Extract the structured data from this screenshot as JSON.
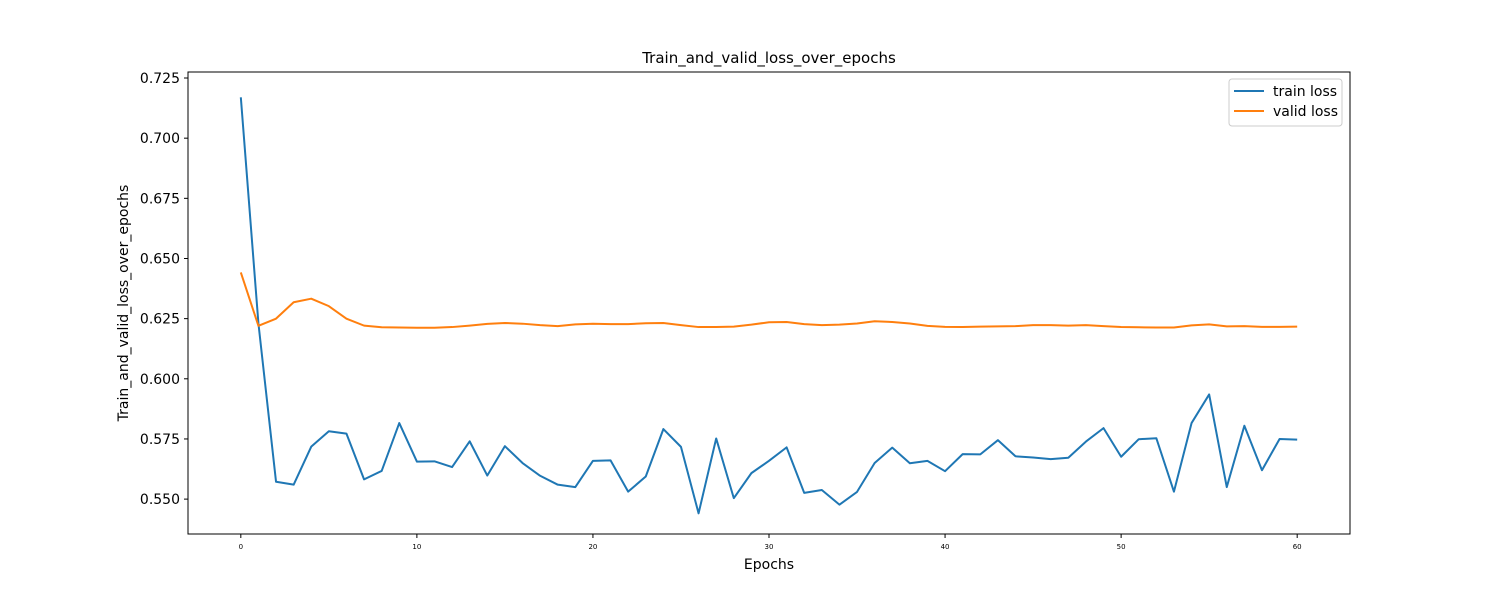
{
  "chart_data": {
    "type": "line",
    "title": "Train_and_valid_loss_over_epochs",
    "xlabel": "Epochs",
    "ylabel": "Train_and_valid_loss_over_epochs",
    "xlim": [
      -3,
      63
    ],
    "ylim": [
      0.5355,
      0.7275
    ],
    "x_ticks": [
      0,
      10,
      20,
      30,
      40,
      50,
      60
    ],
    "y_ticks": [
      0.55,
      0.575,
      0.6,
      0.625,
      0.65,
      0.675,
      0.7,
      0.725
    ],
    "y_tick_labels": [
      "0.550",
      "0.575",
      "0.600",
      "0.625",
      "0.650",
      "0.675",
      "0.700",
      "0.725"
    ],
    "grid": false,
    "legend_position": "top-right",
    "x": [
      0,
      1,
      2,
      3,
      4,
      5,
      6,
      7,
      8,
      9,
      10,
      11,
      12,
      13,
      14,
      15,
      16,
      17,
      18,
      19,
      20,
      21,
      22,
      23,
      24,
      25,
      26,
      27,
      28,
      29,
      30,
      31,
      32,
      33,
      34,
      35,
      36,
      37,
      38,
      39,
      40,
      41,
      42,
      43,
      44,
      45,
      46,
      47,
      48,
      49,
      50,
      51,
      52,
      53,
      54,
      55,
      56,
      57,
      58,
      59,
      60
    ],
    "series": [
      {
        "name": "train loss",
        "color": "#1f77b4",
        "values": [
          0.717,
          0.623,
          0.5572,
          0.556,
          0.5718,
          0.5782,
          0.5772,
          0.5582,
          0.5617,
          0.5816,
          0.5656,
          0.5657,
          0.5633,
          0.574,
          0.5598,
          0.572,
          0.565,
          0.5597,
          0.556,
          0.555,
          0.5659,
          0.5661,
          0.5531,
          0.5594,
          0.5791,
          0.5717,
          0.5441,
          0.5752,
          0.5504,
          0.5608,
          0.5659,
          0.5715,
          0.5526,
          0.5538,
          0.5477,
          0.553,
          0.565,
          0.5714,
          0.5649,
          0.5659,
          0.5616,
          0.5687,
          0.5686,
          0.5745,
          0.5678,
          0.5673,
          0.5666,
          0.5672,
          0.5739,
          0.5795,
          0.5676,
          0.5749,
          0.5753,
          0.5531,
          0.5816,
          0.5935,
          0.555,
          0.5805,
          0.562,
          0.575,
          0.5747
        ]
      },
      {
        "name": "valid loss",
        "color": "#ff7f0e",
        "values": [
          0.6442,
          0.622,
          0.625,
          0.6318,
          0.6333,
          0.6302,
          0.625,
          0.6221,
          0.6214,
          0.6213,
          0.6212,
          0.6212,
          0.6215,
          0.6221,
          0.6228,
          0.6232,
          0.6229,
          0.6223,
          0.6219,
          0.6226,
          0.6229,
          0.6227,
          0.6227,
          0.6231,
          0.6232,
          0.6223,
          0.6215,
          0.6215,
          0.6217,
          0.6225,
          0.6235,
          0.6236,
          0.6227,
          0.6223,
          0.6225,
          0.623,
          0.6239,
          0.6236,
          0.623,
          0.622,
          0.6216,
          0.6215,
          0.6217,
          0.6218,
          0.6219,
          0.6223,
          0.6223,
          0.6221,
          0.6223,
          0.6219,
          0.6215,
          0.6214,
          0.6213,
          0.6213,
          0.6222,
          0.6226,
          0.6218,
          0.6219,
          0.6216,
          0.6216,
          0.6217
        ]
      }
    ]
  }
}
